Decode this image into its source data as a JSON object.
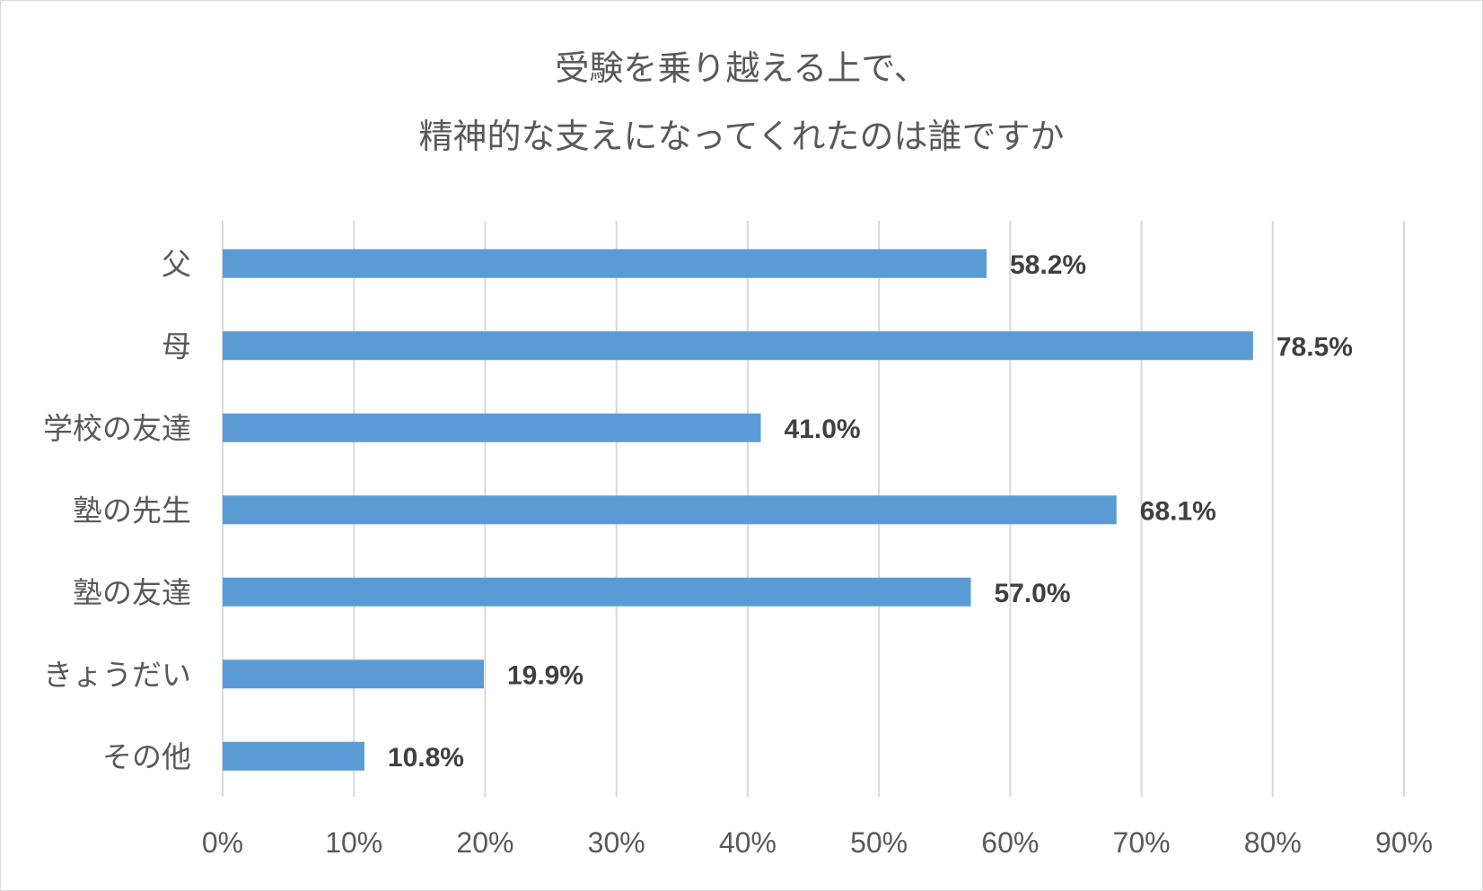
{
  "chart_data": {
    "type": "bar",
    "orientation": "horizontal",
    "title": [
      "受験を乗り越える上で、",
      "精神的な支えになってくれたのは誰ですか"
    ],
    "categories": [
      "父",
      "母",
      "学校の友達",
      "塾の先生",
      "塾の友達",
      "きょうだい",
      "その他"
    ],
    "values": [
      58.2,
      78.5,
      41.0,
      68.1,
      57.0,
      19.9,
      10.8
    ],
    "data_labels": [
      "58.2%",
      "78.5%",
      "41.0%",
      "68.1%",
      "57.0%",
      "19.9%",
      "10.8%"
    ],
    "xlim": [
      0,
      90
    ],
    "xticks": [
      0,
      10,
      20,
      30,
      40,
      50,
      60,
      70,
      80,
      90
    ],
    "xtick_labels": [
      "0%",
      "10%",
      "20%",
      "30%",
      "40%",
      "50%",
      "60%",
      "70%",
      "80%",
      "90%"
    ],
    "grid": true,
    "legend": "none",
    "colors": {
      "bar": "#5b9bd5",
      "grid": "#d9d9d9",
      "text": "#595959",
      "data_label": "#404040"
    }
  }
}
